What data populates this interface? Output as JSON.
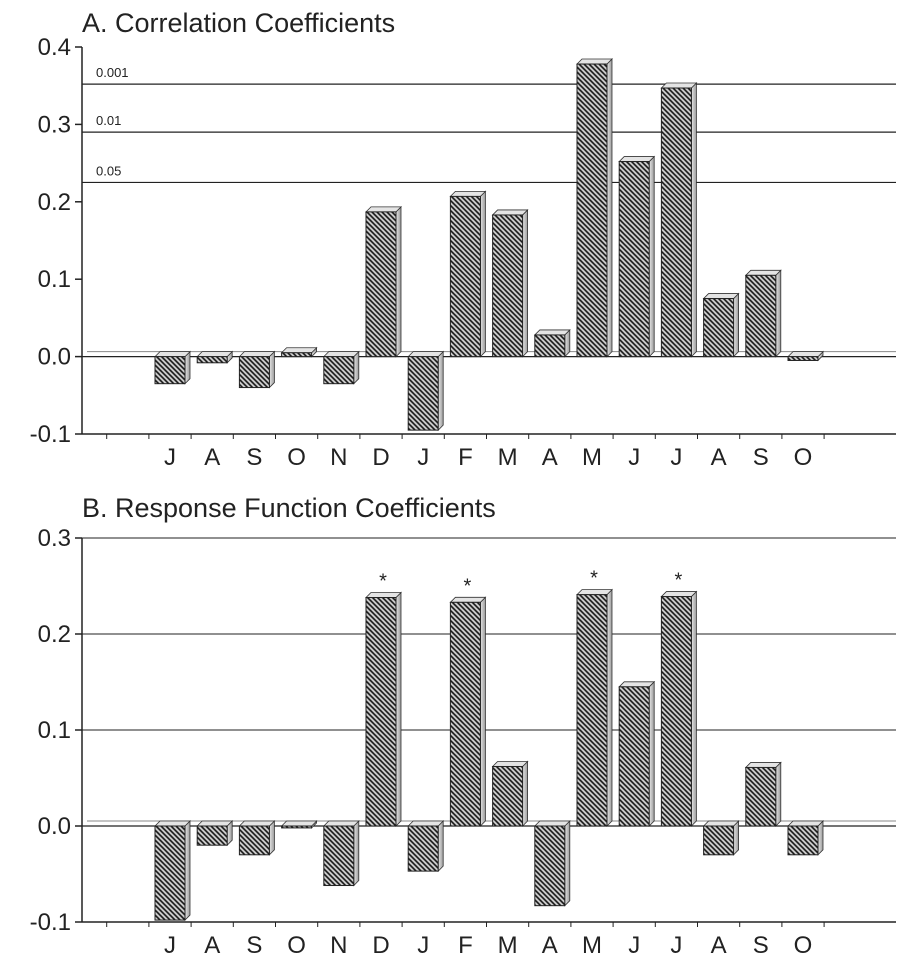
{
  "chart_data": [
    {
      "type": "bar",
      "title": "A. Correlation Coefficients",
      "xlabel": "",
      "ylabel": "",
      "categories": [
        "J",
        "A",
        "S",
        "O",
        "N",
        "D",
        "J",
        "F",
        "M",
        "A",
        "M",
        "J",
        "J",
        "A",
        "S",
        "O"
      ],
      "values": [
        -0.035,
        -0.008,
        -0.04,
        0.005,
        -0.035,
        0.187,
        -0.095,
        0.207,
        0.183,
        0.028,
        0.378,
        0.252,
        0.347,
        0.075,
        0.105,
        -0.005
      ],
      "ylim": [
        -0.1,
        0.4
      ],
      "yticks": [
        "0.4",
        "0.3",
        "0.2",
        "0.1",
        "0.0",
        "-0.1"
      ],
      "ytick_values": [
        0.4,
        0.3,
        0.2,
        0.1,
        0.0,
        -0.1
      ],
      "significance_lines": [
        {
          "label": "0.001",
          "value": 0.352
        },
        {
          "label": "0.01",
          "value": 0.29
        },
        {
          "label": "0.05",
          "value": 0.225
        }
      ],
      "grid": false,
      "bar_pattern": "diagonal-hatch"
    },
    {
      "type": "bar",
      "title": "B. Response Function Coefficients",
      "xlabel": "",
      "ylabel": "",
      "categories": [
        "J",
        "A",
        "S",
        "O",
        "N",
        "D",
        "J",
        "F",
        "M",
        "A",
        "M",
        "J",
        "J",
        "A",
        "S",
        "O"
      ],
      "values": [
        -0.098,
        -0.02,
        -0.03,
        -0.002,
        -0.062,
        0.238,
        -0.047,
        0.233,
        0.062,
        -0.083,
        0.241,
        0.145,
        0.239,
        -0.03,
        0.061,
        -0.03
      ],
      "significant": [
        false,
        false,
        false,
        false,
        false,
        true,
        false,
        true,
        false,
        false,
        true,
        false,
        true,
        false,
        false,
        false
      ],
      "marker": "*",
      "ylim": [
        -0.1,
        0.3
      ],
      "yticks": [
        "0.3",
        "0.2",
        "0.1",
        "0.0",
        "-0.1"
      ],
      "ytick_values": [
        0.3,
        0.2,
        0.1,
        0.0,
        -0.1
      ],
      "grid": true,
      "bar_pattern": "diagonal-hatch"
    }
  ]
}
